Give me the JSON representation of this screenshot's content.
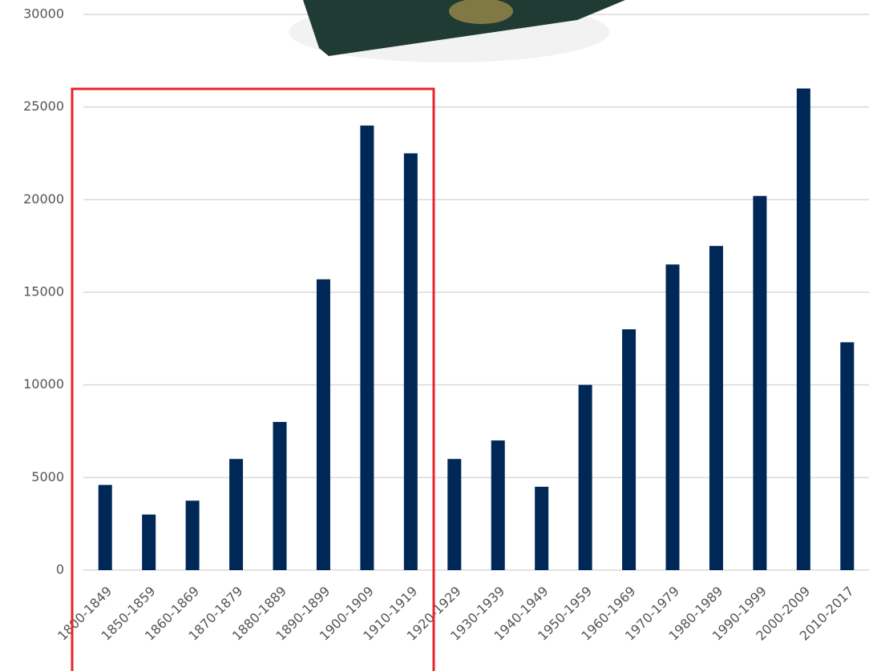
{
  "chart_data": {
    "type": "bar",
    "categories": [
      "1800-1849",
      "1850-1859",
      "1860-1869",
      "1870-1879",
      "1880-1889",
      "1890-1899",
      "1900-1909",
      "1910-1919",
      "1920-1929",
      "1930-1939",
      "1940-1949",
      "1950-1959",
      "1960-1969",
      "1970-1979",
      "1980-1989",
      "1990-1999",
      "2000-2009",
      "2010-2017"
    ],
    "values": [
      4600,
      3000,
      3750,
      6000,
      8000,
      15700,
      24000,
      22500,
      6000,
      7000,
      4500,
      10000,
      13000,
      16500,
      17500,
      20200,
      26000,
      12300
    ],
    "color": "#002856",
    "ylim": [
      0,
      30000
    ],
    "yticks": [
      0,
      5000,
      10000,
      15000,
      20000,
      25000,
      30000
    ],
    "grid": true
  }
}
